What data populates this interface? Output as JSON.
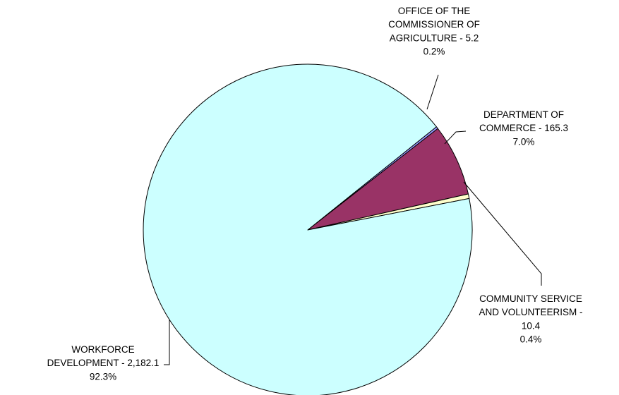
{
  "chart_data": {
    "type": "pie",
    "slices": [
      {
        "name": "OFFICE OF THE COMMISSIONER OF AGRICULTURE",
        "label_lines": [
          "OFFICE OF THE",
          "COMMISSIONER OF",
          "AGRICULTURE - 5.2",
          "0.2%"
        ],
        "value": 5.2,
        "percent": "0.2%",
        "color": "#9999ff"
      },
      {
        "name": "DEPARTMENT OF COMMERCE",
        "label_lines": [
          "DEPARTMENT OF",
          "COMMERCE - 165.3",
          "7.0%"
        ],
        "value": 165.3,
        "percent": "7.0%",
        "color": "#993366"
      },
      {
        "name": "COMMUNITY SERVICE AND VOLUNTEERISM",
        "label_lines": [
          "COMMUNITY SERVICE",
          "AND VOLUNTEERISM -",
          "10.4",
          "0.4%"
        ],
        "value": 10.4,
        "percent": "0.4%",
        "color": "#ffffcc"
      },
      {
        "name": "WORKFORCE DEVELOPMENT",
        "label_lines": [
          "WORKFORCE",
          "DEVELOPMENT - 2,182.1",
          "92.3%"
        ],
        "value": 2182.1,
        "percent": "92.3%",
        "color": "#ccffff"
      }
    ]
  }
}
